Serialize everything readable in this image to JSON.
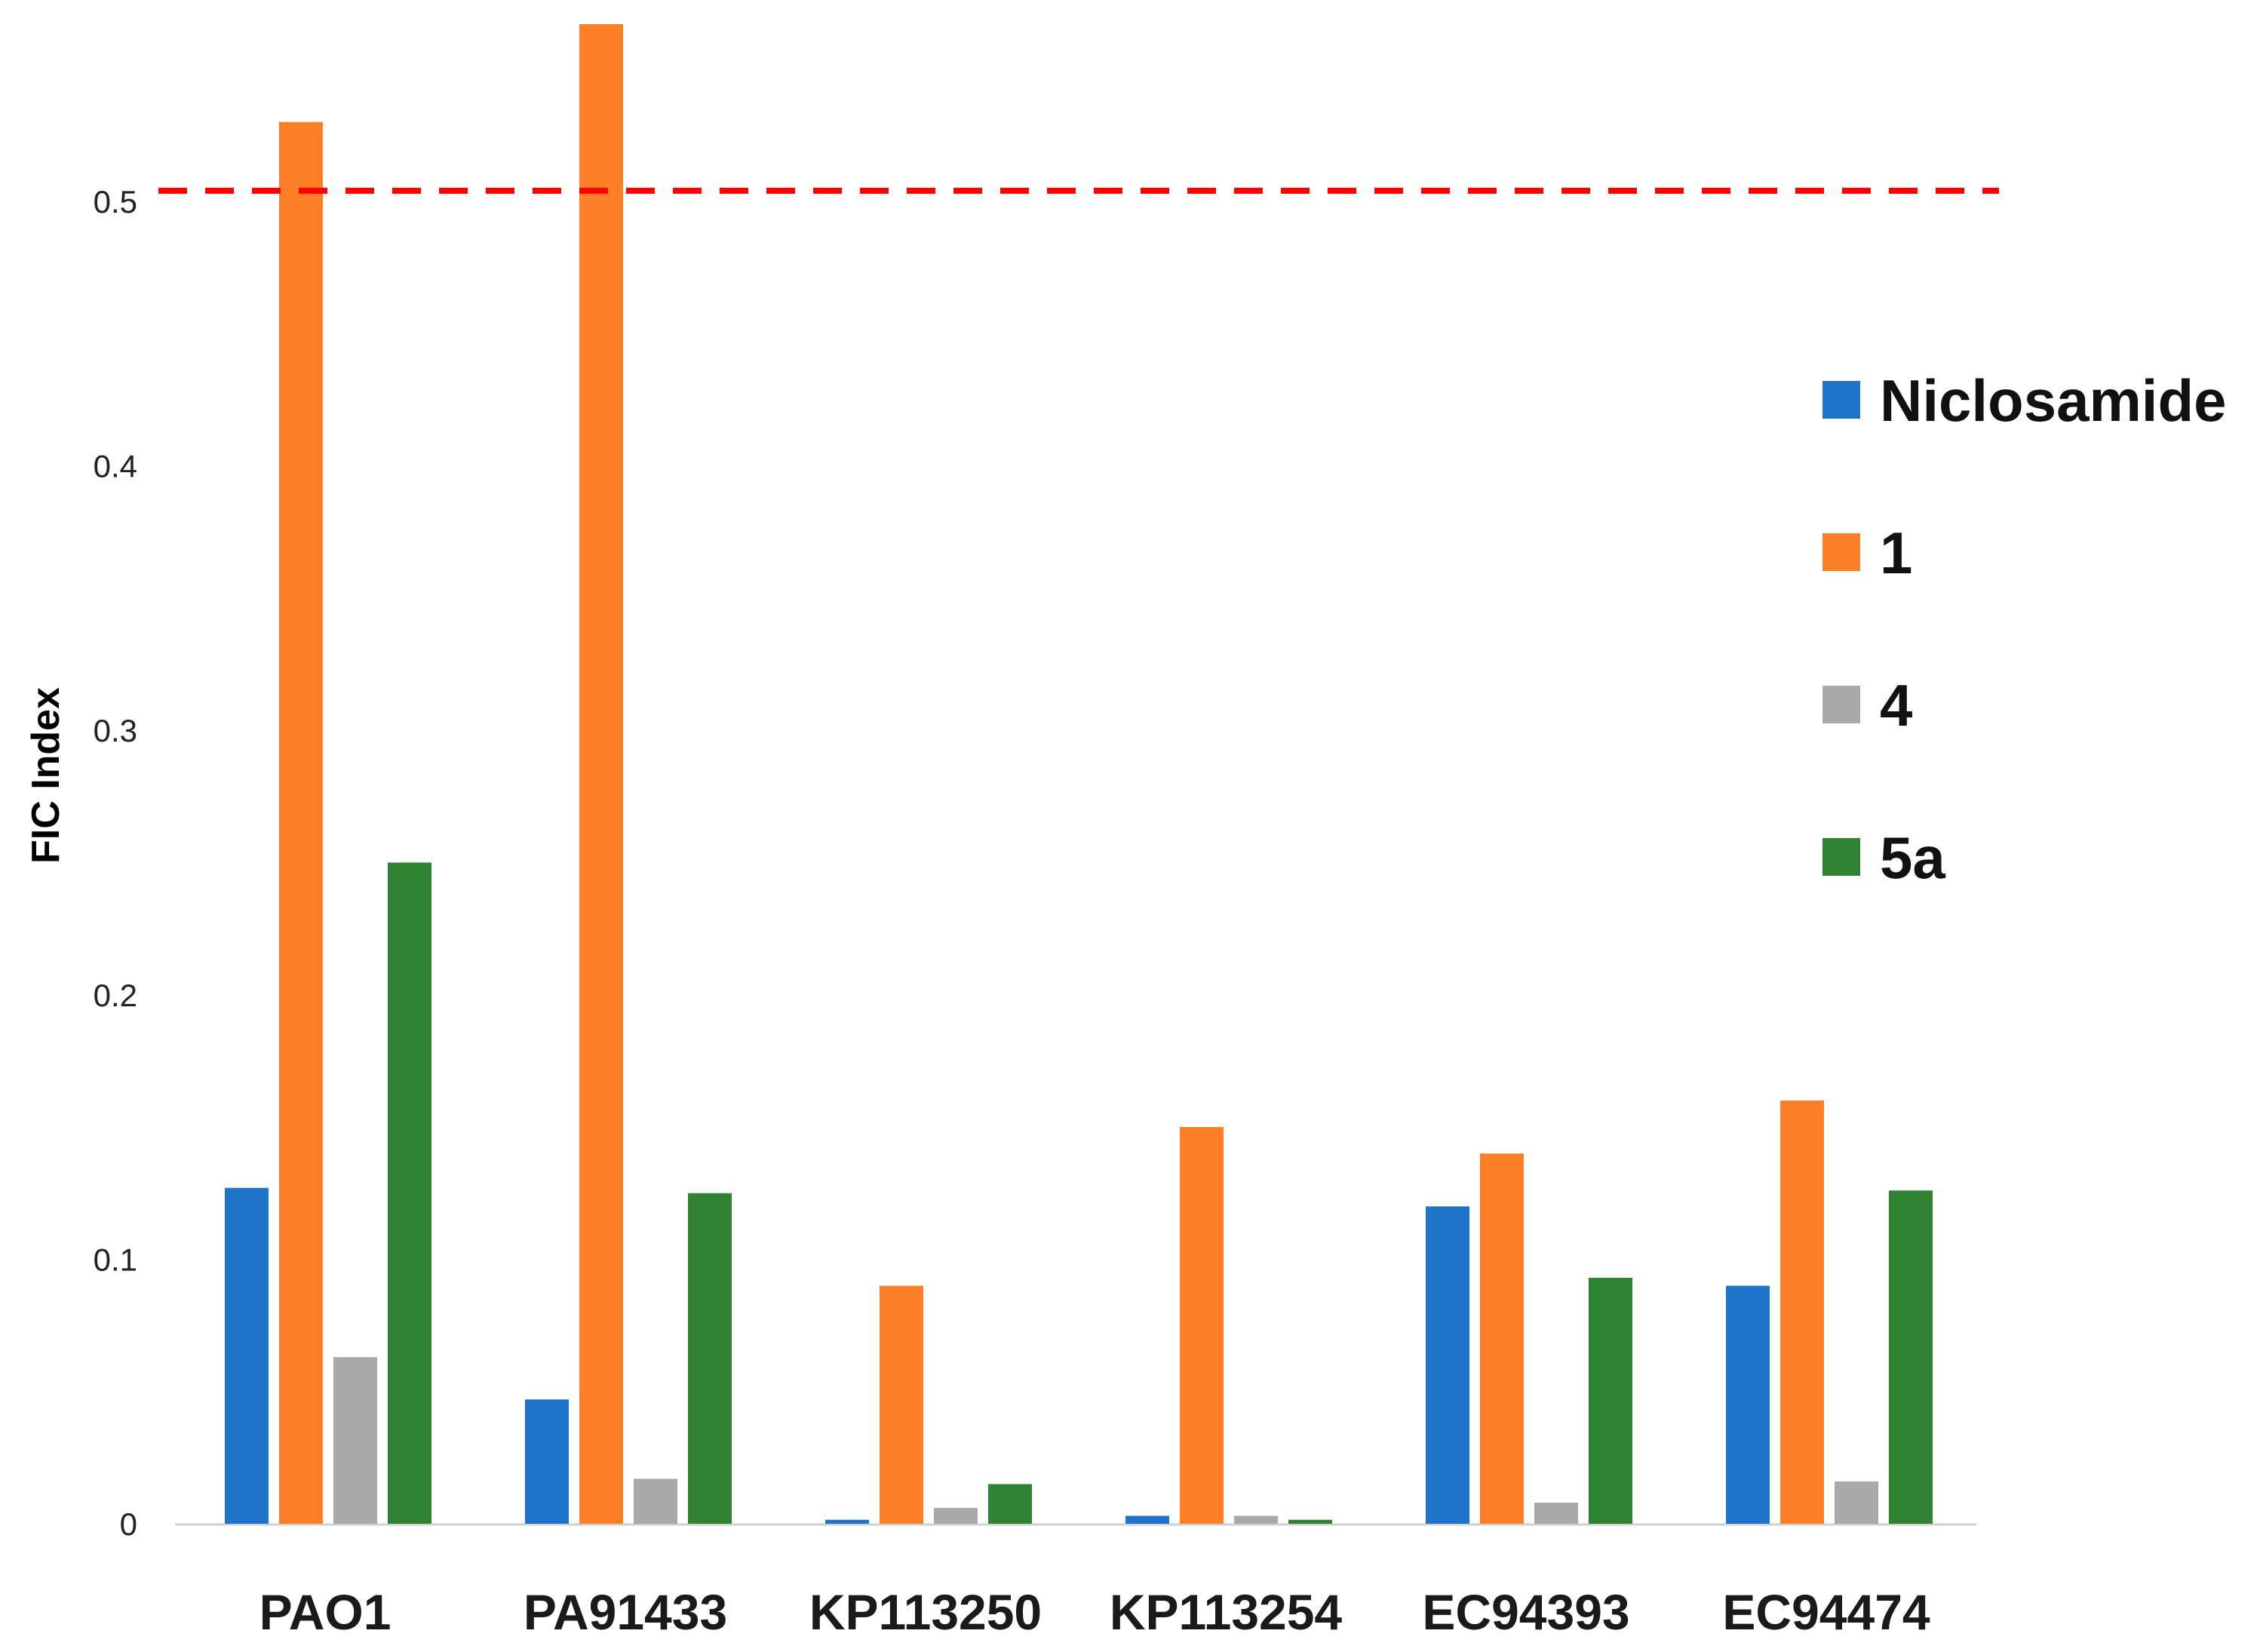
{
  "chart_data": {
    "type": "bar",
    "title": "",
    "xlabel": "",
    "ylabel": "FIC Index",
    "categories": [
      "PAO1",
      "PA91433",
      "KP113250",
      "KP113254",
      "EC94393",
      "EC94474"
    ],
    "series": [
      {
        "name": "Niclosamide",
        "color": "#1f73c9",
        "values": [
          0.127,
          0.047,
          0.0015,
          0.003,
          0.12,
          0.09
        ]
      },
      {
        "name": "1",
        "color": "#fd7f28",
        "values": [
          0.53,
          0.567,
          0.09,
          0.15,
          0.14,
          0.16
        ]
      },
      {
        "name": "4",
        "color": "#a9a9a9",
        "values": [
          0.063,
          0.017,
          0.006,
          0.003,
          0.008,
          0.016
        ]
      },
      {
        "name": "5a",
        "color": "#2e8232",
        "values": [
          0.25,
          0.125,
          0.015,
          0.0015,
          0.093,
          0.126
        ]
      }
    ],
    "yticks": [
      0,
      0.1,
      0.2,
      0.3,
      0.4,
      0.5
    ],
    "ytick_labels": [
      "0",
      "0.1",
      "0.2",
      "0.3",
      "0.4",
      "0.5"
    ],
    "ylim": [
      0,
      0.567
    ],
    "grid": false,
    "legend_position": "right",
    "reference_line": {
      "y": 0.504,
      "style": "dashed",
      "color": "#ff0000"
    }
  }
}
